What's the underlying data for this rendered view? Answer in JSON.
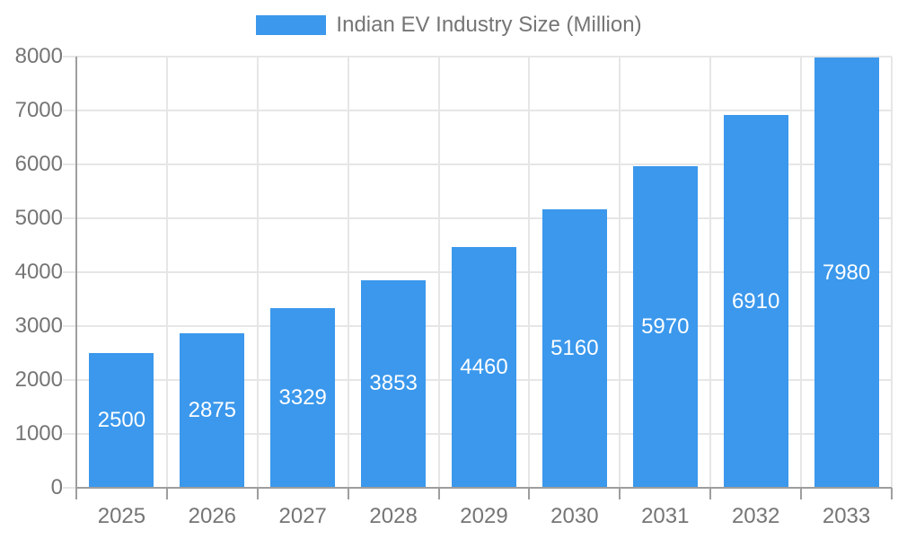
{
  "chart_data": {
    "type": "bar",
    "title": "",
    "legend": {
      "label": "Indian EV Industry Size (Million)",
      "position": "top"
    },
    "categories": [
      "2025",
      "2026",
      "2027",
      "2028",
      "2029",
      "2030",
      "2031",
      "2032",
      "2033"
    ],
    "series": [
      {
        "name": "Indian EV Industry Size (Million)",
        "values": [
          2500,
          2875,
          3329,
          3853,
          4460,
          5160,
          5970,
          6910,
          7980
        ]
      }
    ],
    "value_labels": [
      "2500",
      "2875",
      "3329",
      "3853",
      "4460",
      "5160",
      "5970",
      "6910",
      "7980"
    ],
    "xlabel": "",
    "ylabel": "",
    "ylim": [
      0,
      8000
    ],
    "ytick_step": 1000,
    "yticks": [
      0,
      1000,
      2000,
      3000,
      4000,
      5000,
      6000,
      7000,
      8000
    ],
    "grid": true,
    "colors": {
      "bar": "#3B98EC",
      "bar_value_text": "#ffffff",
      "axis_text": "#757575",
      "gridline": "#e6e6e6",
      "axis_line": "#9e9e9e",
      "background": "#ffffff"
    }
  }
}
